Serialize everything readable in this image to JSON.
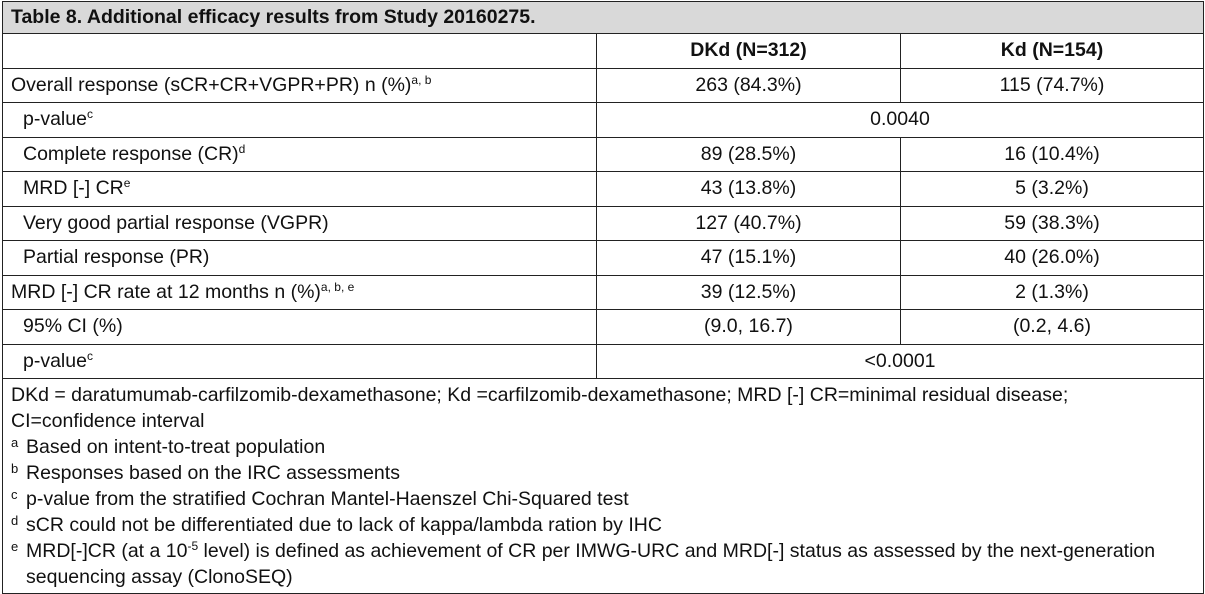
{
  "title": "Table 8. Additional efficacy results from Study 20160275.",
  "columns": [
    "",
    "DKd (N=312)",
    "Kd (N=154)"
  ],
  "rows": [
    {
      "label": "Overall response (sCR+CR+VGPR+PR) n (%)",
      "sup": "a, b",
      "dkd": "263 (84.3%)",
      "kd": "115 (74.7%)"
    },
    {
      "label": "p-value",
      "sup": "c",
      "merged": "0.0040"
    },
    {
      "label": "Complete response (CR)",
      "sup": "d",
      "dkd": "89 (28.5%)",
      "kd": "16 (10.4%)"
    },
    {
      "label": "MRD [-] CR",
      "sup": "e",
      "dkd": "43 (13.8%)",
      "kd": "5 (3.2%)"
    },
    {
      "label": "Very good partial response (VGPR)",
      "dkd": "127 (40.7%)",
      "kd": "59 (38.3%)"
    },
    {
      "label": "Partial response (PR)",
      "dkd": "47 (15.1%)",
      "kd": "40 (26.0%)"
    },
    {
      "label": "MRD [-] CR rate at 12 months n (%)",
      "sup": "a, b, e",
      "dkd": "39 (12.5%)",
      "kd": "2 (1.3%)"
    },
    {
      "label": "95% CI (%)",
      "dkd": "(9.0, 16.7)",
      "kd": "(0.2, 4.6)"
    },
    {
      "label": "p-value",
      "sup": "c",
      "merged": "<0.0001"
    }
  ],
  "notes": {
    "abbrev": "DKd = daratumumab-carfilzomib-dexamethasone; Kd =carfilzomib-dexamethasone; MRD [-] CR=minimal residual disease; CI=confidence interval",
    "footnotes": [
      {
        "mark": "a",
        "text": "Based on intent-to-treat population"
      },
      {
        "mark": "b",
        "text": "Responses based on the IRC assessments"
      },
      {
        "mark": "c",
        "text": "p-value from the stratified Cochran Mantel-Haenszel Chi-Squared test"
      },
      {
        "mark": "d",
        "text": "sCR could not be differentiated due to lack of kappa/lambda ration by IHC"
      }
    ],
    "footnote_e": {
      "mark": "e",
      "pre": "MRD[-]CR (at a 10",
      "exp": "-5",
      "post": " level) is defined as achievement of CR per IMWG-URC and MRD[-] status as assessed by the next-generation sequencing assay (ClonoSEQ)"
    }
  }
}
